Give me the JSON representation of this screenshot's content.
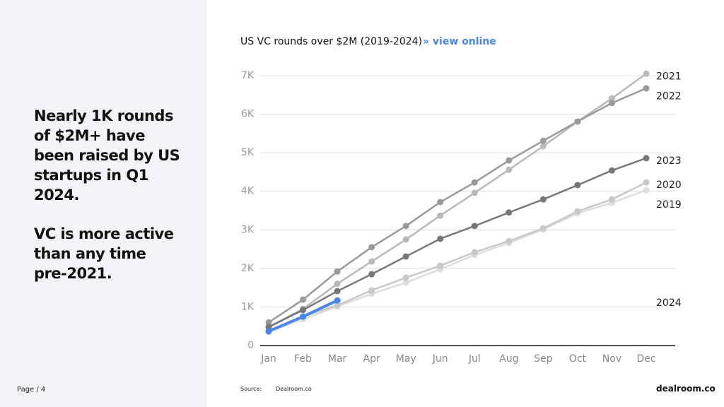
{
  "slide": {
    "headline": "Nearly 1K rounds of $2M+ have been raised by US startups in Q1 2024.",
    "subline": "VC is more active than any time pre-2021.",
    "page": "Page / 4",
    "source_label": "Source:",
    "source": "Dealroom.co",
    "logo": "dealroom.co"
  },
  "chart_data": {
    "type": "line",
    "title": "US VC rounds over $2M (2019-2024)",
    "link": "» view online",
    "categories": [
      "Jan",
      "Feb",
      "Mar",
      "Apr",
      "May",
      "Jun",
      "Jul",
      "Aug",
      "Sep",
      "Oct",
      "Nov",
      "Dec"
    ],
    "series": [
      {
        "name": "2019",
        "color": "#dcdcdc",
        "values": [
          350,
          680,
          1010,
          1340,
          1630,
          1980,
          2350,
          2660,
          3010,
          3430,
          3700,
          4030
        ]
      },
      {
        "name": "2020",
        "color": "#c8c8c8",
        "values": [
          380,
          750,
          1040,
          1430,
          1760,
          2070,
          2420,
          2710,
          3040,
          3480,
          3790,
          4230
        ]
      },
      {
        "name": "2021",
        "color": "#b9b9b9",
        "values": [
          480,
          950,
          1600,
          2180,
          2750,
          3370,
          3960,
          4560,
          5170,
          5810,
          6410,
          7050
        ]
      },
      {
        "name": "2022",
        "color": "#9a9a9a",
        "values": [
          600,
          1190,
          1920,
          2550,
          3100,
          3720,
          4230,
          4800,
          5310,
          5810,
          6290,
          6670
        ]
      },
      {
        "name": "2023",
        "color": "#777777",
        "values": [
          480,
          920,
          1410,
          1850,
          2310,
          2770,
          3100,
          3450,
          3790,
          4160,
          4540,
          4860
        ]
      },
      {
        "name": "2024",
        "color": "#4a86e8",
        "values": [
          370,
          750,
          1170,
          null,
          null,
          null,
          null,
          null,
          null,
          null,
          null,
          null
        ]
      }
    ],
    "ylim": [
      0,
      7000
    ],
    "yticks": [
      0,
      {
        "value": 1000,
        "label": "1K"
      },
      {
        "value": 2000,
        "label": "2K"
      },
      {
        "value": 3000,
        "label": "3K"
      },
      {
        "value": 4000,
        "label": "4K"
      },
      {
        "value": 5000,
        "label": "5K"
      },
      {
        "value": 6000,
        "label": "6K"
      },
      {
        "value": 7000,
        "label": "7K"
      }
    ],
    "grid": true
  }
}
